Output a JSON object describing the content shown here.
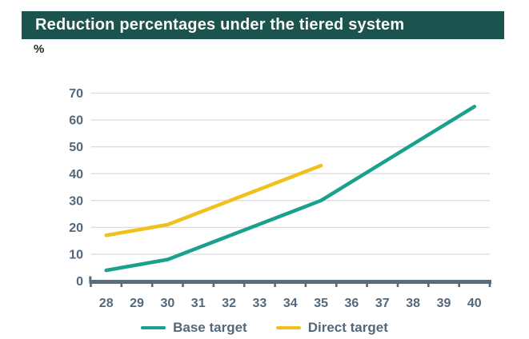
{
  "header": {
    "title": "Reduction percentages under the tiered system"
  },
  "colors": {
    "banner_bg": "#1b534e",
    "banner_text": "#fbfaf6",
    "tick_label": "#54687b",
    "axis": "#5b6b77",
    "gridline": "#dcdcdc",
    "base_target_line": "#1aa18e",
    "direct_target_line": "#f0c11e"
  },
  "chart_data": {
    "type": "line",
    "title": "Reduction percentages under the tiered system",
    "ylabel": "%",
    "xlabel": "",
    "categories": [
      28,
      29,
      30,
      31,
      32,
      33,
      34,
      35,
      36,
      37,
      38,
      39,
      40
    ],
    "y_ticks": [
      0,
      10,
      20,
      30,
      40,
      50,
      60,
      70
    ],
    "ylim": [
      0,
      70
    ],
    "grid": "horizontal",
    "legend_position": "bottom",
    "series": [
      {
        "name": "Base target",
        "color": "#1aa18e",
        "points": [
          [
            28,
            4
          ],
          [
            30,
            8
          ],
          [
            35,
            30
          ],
          [
            40,
            65
          ]
        ]
      },
      {
        "name": "Direct target",
        "color": "#f0c11e",
        "points": [
          [
            28,
            17
          ],
          [
            30,
            21
          ],
          [
            35,
            43
          ]
        ]
      }
    ]
  }
}
